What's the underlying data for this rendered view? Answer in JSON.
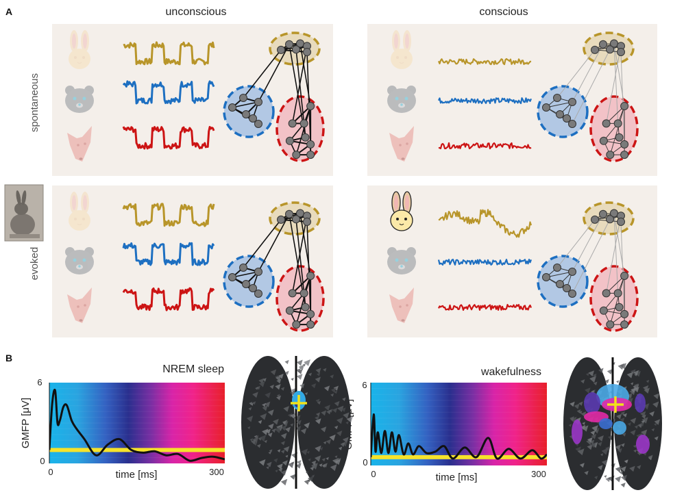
{
  "panel_a": {
    "label": "A",
    "col_unconscious": "unconscious",
    "col_conscious": "conscious",
    "row_spontaneous": "spontaneous",
    "row_evoked": "evoked"
  },
  "panel_b": {
    "label": "B",
    "nrem_title": "NREM sleep",
    "wake_title": "wakefulness",
    "ylabel": "GMFP [μV]",
    "xlabel": "time [ms]",
    "ytick_top": "6",
    "ytick_bottom": "0",
    "xtick_left": "0",
    "xtick_right": "300"
  },
  "colors": {
    "gold": "#b8952a",
    "blue": "#1d6fc1",
    "red": "#cc1414",
    "yellow_line": "#f6e32b"
  },
  "chart_data": [
    {
      "type": "line",
      "title": "NREM sleep",
      "xlabel": "time [ms]",
      "ylabel": "GMFP [μV]",
      "xlim": [
        0,
        300
      ],
      "ylim": [
        0,
        6
      ],
      "x": [
        0,
        5,
        10,
        14,
        18,
        24,
        30,
        38,
        46,
        60,
        80,
        100,
        120,
        140,
        160,
        180,
        200,
        220,
        240,
        260,
        280,
        300
      ],
      "values": [
        1.0,
        4.5,
        5.4,
        3.0,
        3.2,
        4.2,
        4.3,
        3.2,
        2.6,
        1.8,
        0.6,
        1.4,
        1.8,
        1.0,
        0.8,
        0.9,
        0.6,
        0.7,
        0.2,
        0.4,
        0.5,
        0.3
      ],
      "threshold": 1.0
    },
    {
      "type": "line",
      "title": "wakefulness",
      "xlabel": "time [ms]",
      "ylabel": "GMFP [μV]",
      "xlim": [
        0,
        300
      ],
      "ylim": [
        0,
        6
      ],
      "x": [
        0,
        5,
        8,
        12,
        18,
        24,
        30,
        36,
        42,
        48,
        56,
        64,
        72,
        82,
        95,
        110,
        125,
        140,
        160,
        180,
        200,
        215,
        235,
        255,
        275,
        290,
        300
      ],
      "values": [
        0.6,
        3.7,
        1.0,
        2.4,
        0.9,
        2.5,
        0.9,
        2.4,
        1.0,
        2.2,
        0.8,
        1.6,
        0.8,
        1.4,
        0.9,
        1.0,
        1.4,
        0.5,
        1.3,
        0.6,
        2.0,
        0.5,
        1.2,
        0.5,
        1.1,
        0.5,
        0.8
      ],
      "threshold": 0.6
    }
  ]
}
